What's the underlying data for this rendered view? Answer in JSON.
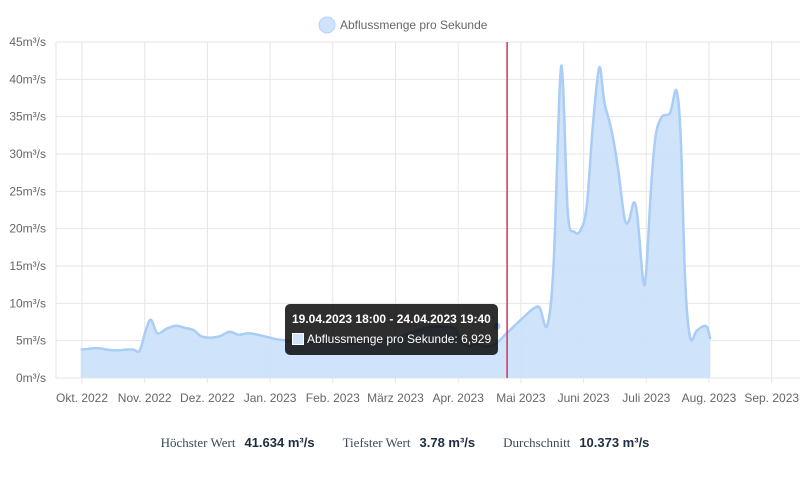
{
  "colors": {
    "fill": "#cce1fa",
    "line": "#a9cdf5",
    "marker": "#d1335c",
    "grid": "#e6e6e6"
  },
  "chart_data": {
    "type": "area",
    "title": "",
    "xlabel": "",
    "ylabel": "",
    "legend_position": "top-center",
    "grid": true,
    "ylim": [
      0,
      45
    ],
    "y_ticks": [
      "0m³/s",
      "5m³/s",
      "10m³/s",
      "15m³/s",
      "20m³/s",
      "25m³/s",
      "30m³/s",
      "35m³/s",
      "40m³/s",
      "45m³/s"
    ],
    "x_ticks": [
      "Okt. 2022",
      "Nov. 2022",
      "Dez. 2022",
      "Jan. 2023",
      "Feb. 2023",
      "März 2023",
      "Apr. 2023",
      "Mai 2023",
      "Juni 2023",
      "Juli 2023",
      "Aug. 2023",
      "Sep. 2023"
    ],
    "series": [
      {
        "name": "Abflussmenge pro Sekunde",
        "points": [
          [
            -0.02,
            3.8
          ],
          [
            0.1,
            3.9
          ],
          [
            0.25,
            4.0
          ],
          [
            0.4,
            3.8
          ],
          [
            0.55,
            3.7
          ],
          [
            0.7,
            3.8
          ],
          [
            0.82,
            3.8
          ],
          [
            0.92,
            3.7
          ],
          [
            1.02,
            6.5
          ],
          [
            1.1,
            7.8
          ],
          [
            1.2,
            6.0
          ],
          [
            1.35,
            6.6
          ],
          [
            1.5,
            7.0
          ],
          [
            1.65,
            6.7
          ],
          [
            1.78,
            6.4
          ],
          [
            1.9,
            5.6
          ],
          [
            2.05,
            5.4
          ],
          [
            2.2,
            5.6
          ],
          [
            2.35,
            6.2
          ],
          [
            2.5,
            5.8
          ],
          [
            2.65,
            6.0
          ],
          [
            2.8,
            5.8
          ],
          [
            2.95,
            5.5
          ],
          [
            3.1,
            5.2
          ],
          [
            3.3,
            5.0
          ],
          [
            3.5,
            4.9
          ],
          [
            3.7,
            4.8
          ],
          [
            3.9,
            4.7
          ],
          [
            4.1,
            4.8
          ],
          [
            4.3,
            4.6
          ],
          [
            4.5,
            4.7
          ],
          [
            4.7,
            4.9
          ],
          [
            4.9,
            5.2
          ],
          [
            5.1,
            5.6
          ],
          [
            5.3,
            6.2
          ],
          [
            5.5,
            6.8
          ],
          [
            5.65,
            6.9
          ],
          [
            5.8,
            6.8
          ],
          [
            5.95,
            6.6
          ],
          [
            6.05,
            5.0
          ],
          [
            6.15,
            4.3
          ],
          [
            6.3,
            4.5
          ],
          [
            6.45,
            4.2
          ],
          [
            6.6,
            4.6
          ],
          [
            6.75,
            5.8
          ],
          [
            6.9,
            7.0
          ],
          [
            7.05,
            8.2
          ],
          [
            7.2,
            9.3
          ],
          [
            7.3,
            9.4
          ],
          [
            7.42,
            7.0
          ],
          [
            7.52,
            15.0
          ],
          [
            7.62,
            39.0
          ],
          [
            7.67,
            39.5
          ],
          [
            7.75,
            22.0
          ],
          [
            7.85,
            19.6
          ],
          [
            7.95,
            19.8
          ],
          [
            8.05,
            23.0
          ],
          [
            8.15,
            34.0
          ],
          [
            8.25,
            41.6
          ],
          [
            8.33,
            37.0
          ],
          [
            8.45,
            33.0
          ],
          [
            8.55,
            28.0
          ],
          [
            8.65,
            21.5
          ],
          [
            8.72,
            21.0
          ],
          [
            8.8,
            23.5
          ],
          [
            8.86,
            21.5
          ],
          [
            8.95,
            13.0
          ],
          [
            9.0,
            14.5
          ],
          [
            9.08,
            26.0
          ],
          [
            9.15,
            32.5
          ],
          [
            9.25,
            35.0
          ],
          [
            9.38,
            35.5
          ],
          [
            9.48,
            38.5
          ],
          [
            9.55,
            32.0
          ],
          [
            9.62,
            13.0
          ],
          [
            9.7,
            5.4
          ],
          [
            9.8,
            6.3
          ],
          [
            9.9,
            6.9
          ],
          [
            9.97,
            6.8
          ],
          [
            10.02,
            5.2
          ]
        ]
      }
    ],
    "marker_x": 6.78,
    "tooltip_point": [
      6.62,
      6.929
    ],
    "tooltip": {
      "title": "19.04.2023 18:00 - 24.04.2023 19:40",
      "body": "Abflussmenge pro Sekunde: 6,929"
    }
  },
  "stats": {
    "max_label": "Höchster Wert",
    "max_value": "41.634 m³/s",
    "min_label": "Tiefster Wert",
    "min_value": "3.78 m³/s",
    "avg_label": "Durchschnitt",
    "avg_value": "10.373 m³/s"
  }
}
